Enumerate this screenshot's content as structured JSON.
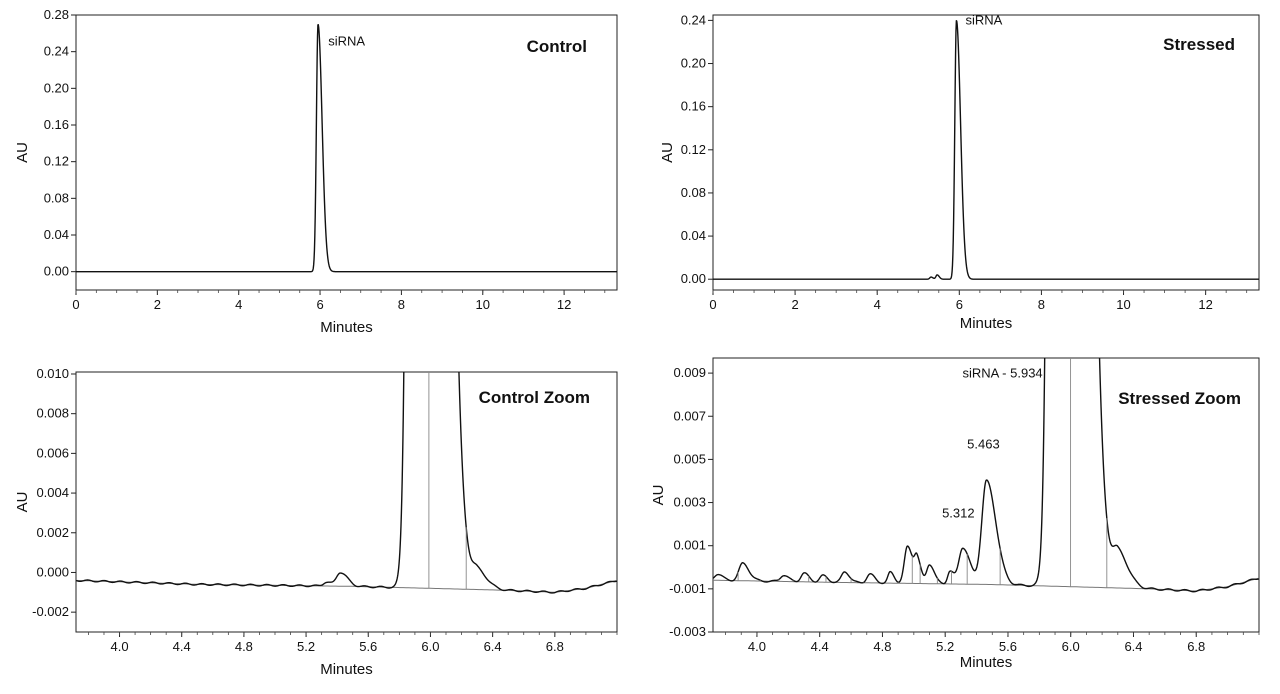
{
  "chart_data": [
    {
      "type": "line",
      "title": "Control",
      "xlabel": "Minutes",
      "ylabel": "AU",
      "xlim": [
        0,
        13.3
      ],
      "ylim": [
        -0.02,
        0.28
      ],
      "x_ticks": [
        0,
        2,
        4,
        6,
        8,
        10,
        12
      ],
      "x_tick_labels": [
        "0",
        "2",
        "4",
        "6",
        "8",
        "10",
        "12"
      ],
      "y_ticks": [
        0.0,
        0.04,
        0.08,
        0.12,
        0.16,
        0.2,
        0.24,
        0.28
      ],
      "y_tick_labels": [
        "0.00",
        "0.04",
        "0.08",
        "0.12",
        "0.16",
        "0.20",
        "0.24",
        "0.28"
      ],
      "peaks": [
        {
          "x": 5.95,
          "height": 0.27,
          "width": 0.04,
          "tail": 0.06
        }
      ],
      "baseline": 0.0,
      "annotations": [
        {
          "text": "siRNA",
          "x": 6.2,
          "y": 0.247
        }
      ]
    },
    {
      "type": "line",
      "title": "Stressed",
      "xlabel": "Minutes",
      "ylabel": "AU",
      "xlim": [
        0,
        13.3
      ],
      "ylim": [
        -0.01,
        0.245
      ],
      "x_ticks": [
        0,
        2,
        4,
        6,
        8,
        10,
        12
      ],
      "x_tick_labels": [
        "0",
        "2",
        "4",
        "6",
        "8",
        "10",
        "12"
      ],
      "y_ticks": [
        0.0,
        0.04,
        0.08,
        0.12,
        0.16,
        0.2,
        0.24
      ],
      "y_tick_labels": [
        "0.00",
        "0.04",
        "0.08",
        "0.12",
        "0.16",
        "0.20",
        "0.24"
      ],
      "peaks": [
        {
          "x": 5.93,
          "height": 0.24,
          "width": 0.04,
          "tail": 0.06
        },
        {
          "x": 5.46,
          "height": 0.004,
          "width": 0.03,
          "tail": 0.02
        },
        {
          "x": 5.31,
          "height": 0.002,
          "width": 0.03,
          "tail": 0.02
        }
      ],
      "baseline": 0.0,
      "annotations": [
        {
          "text": "siRNA",
          "x": 6.15,
          "y": 0.236
        }
      ]
    },
    {
      "type": "line",
      "title": "Control Zoom",
      "xlabel": "Minutes",
      "ylabel": "AU",
      "xlim": [
        3.72,
        7.2
      ],
      "ylim": [
        -0.003,
        0.0101
      ],
      "x_ticks": [
        4.0,
        4.4,
        4.8,
        5.2,
        5.6,
        6.0,
        6.4,
        6.8
      ],
      "x_tick_labels": [
        "4.0",
        "4.4",
        "4.8",
        "5.2",
        "5.6",
        "6.0",
        "6.4",
        "6.8"
      ],
      "y_ticks": [
        -0.002,
        0.0,
        0.002,
        0.004,
        0.006,
        0.008,
        0.01
      ],
      "y_tick_labels": [
        "-0.002",
        "0.000",
        "0.002",
        "0.004",
        "0.006",
        "0.008",
        "0.010"
      ],
      "baseline": {
        "x": [
          3.72,
          4.5,
          5.5,
          6.0,
          6.5,
          6.8,
          7.0,
          7.2
        ],
        "y": [
          -0.0004,
          -0.0006,
          -0.0007,
          -0.0008,
          -0.0009,
          -0.001,
          -0.0008,
          -0.0004
        ]
      },
      "peaks": [
        {
          "x": 5.93,
          "height": 0.27,
          "width": 0.04,
          "tail": 0.06
        },
        {
          "x": 6.3,
          "height": 0.0009,
          "width": 0.035,
          "tail": 0.03
        },
        {
          "x": 5.42,
          "height": 0.0007,
          "width": 0.025,
          "tail": 0.02
        },
        {
          "x": 5.33,
          "height": 0.0002,
          "width": 0.02,
          "tail": 0.01
        }
      ],
      "drop_lines": [
        5.99,
        6.23
      ],
      "annotations": []
    },
    {
      "type": "line",
      "title": "Stressed Zoom",
      "xlabel": "Minutes",
      "ylabel": "AU",
      "xlim": [
        3.72,
        7.2
      ],
      "ylim": [
        -0.003,
        0.0097
      ],
      "x_ticks": [
        4.0,
        4.4,
        4.8,
        5.2,
        5.6,
        6.0,
        6.4,
        6.8
      ],
      "x_tick_labels": [
        "4.0",
        "4.4",
        "4.8",
        "5.2",
        "5.6",
        "6.0",
        "6.4",
        "6.8"
      ],
      "y_ticks": [
        -0.003,
        -0.001,
        0.001,
        0.003,
        0.005,
        0.007,
        0.009
      ],
      "y_tick_labels": [
        "-0.003",
        "-0.001",
        "0.001",
        "0.003",
        "0.005",
        "0.007",
        "0.009"
      ],
      "baseline": {
        "x": [
          3.72,
          4.5,
          5.5,
          6.0,
          6.5,
          6.8,
          7.0,
          7.2
        ],
        "y": [
          -0.0006,
          -0.0007,
          -0.0008,
          -0.0009,
          -0.001,
          -0.0011,
          -0.0009,
          -0.0005
        ]
      },
      "peaks": [
        {
          "x": 5.934,
          "height": 0.24,
          "width": 0.04,
          "tail": 0.06
        },
        {
          "x": 5.463,
          "height": 0.0048,
          "width": 0.03,
          "tail": 0.03
        },
        {
          "x": 5.312,
          "height": 0.0017,
          "width": 0.025,
          "tail": 0.02
        },
        {
          "x": 6.3,
          "height": 0.0016,
          "width": 0.035,
          "tail": 0.03
        },
        {
          "x": 4.96,
          "height": 0.0017,
          "width": 0.02,
          "tail": 0.015
        },
        {
          "x": 5.02,
          "height": 0.001,
          "width": 0.015,
          "tail": 0.01
        },
        {
          "x": 5.1,
          "height": 0.0009,
          "width": 0.018,
          "tail": 0.012
        },
        {
          "x": 5.23,
          "height": 0.0006,
          "width": 0.015,
          "tail": 0.01
        },
        {
          "x": 4.85,
          "height": 0.0005,
          "width": 0.015,
          "tail": 0.01
        },
        {
          "x": 4.56,
          "height": 0.0005,
          "width": 0.02,
          "tail": 0.01
        },
        {
          "x": 4.72,
          "height": 0.0004,
          "width": 0.02,
          "tail": 0.01
        },
        {
          "x": 4.42,
          "height": 0.0003,
          "width": 0.02,
          "tail": 0.01
        },
        {
          "x": 4.3,
          "height": 0.0004,
          "width": 0.02,
          "tail": 0.01
        },
        {
          "x": 4.17,
          "height": 0.0003,
          "width": 0.02,
          "tail": 0.01
        },
        {
          "x": 3.91,
          "height": 0.0008,
          "width": 0.025,
          "tail": 0.015
        },
        {
          "x": 3.75,
          "height": 0.0003,
          "width": 0.02,
          "tail": 0.01
        }
      ],
      "drop_lines": [
        3.88,
        4.02,
        4.14,
        4.23,
        4.33,
        4.44,
        4.6,
        4.68,
        4.79,
        4.9,
        4.99,
        5.04,
        5.15,
        5.24,
        5.34,
        5.55,
        5.999,
        6.23
      ],
      "annotations": [
        {
          "text": "siRNA - 5.934",
          "x": 5.31,
          "y": 0.0088
        },
        {
          "text": "5.463",
          "x": 5.34,
          "y": 0.0055
        },
        {
          "text": "5.312",
          "x": 5.18,
          "y": 0.0023
        }
      ]
    }
  ]
}
